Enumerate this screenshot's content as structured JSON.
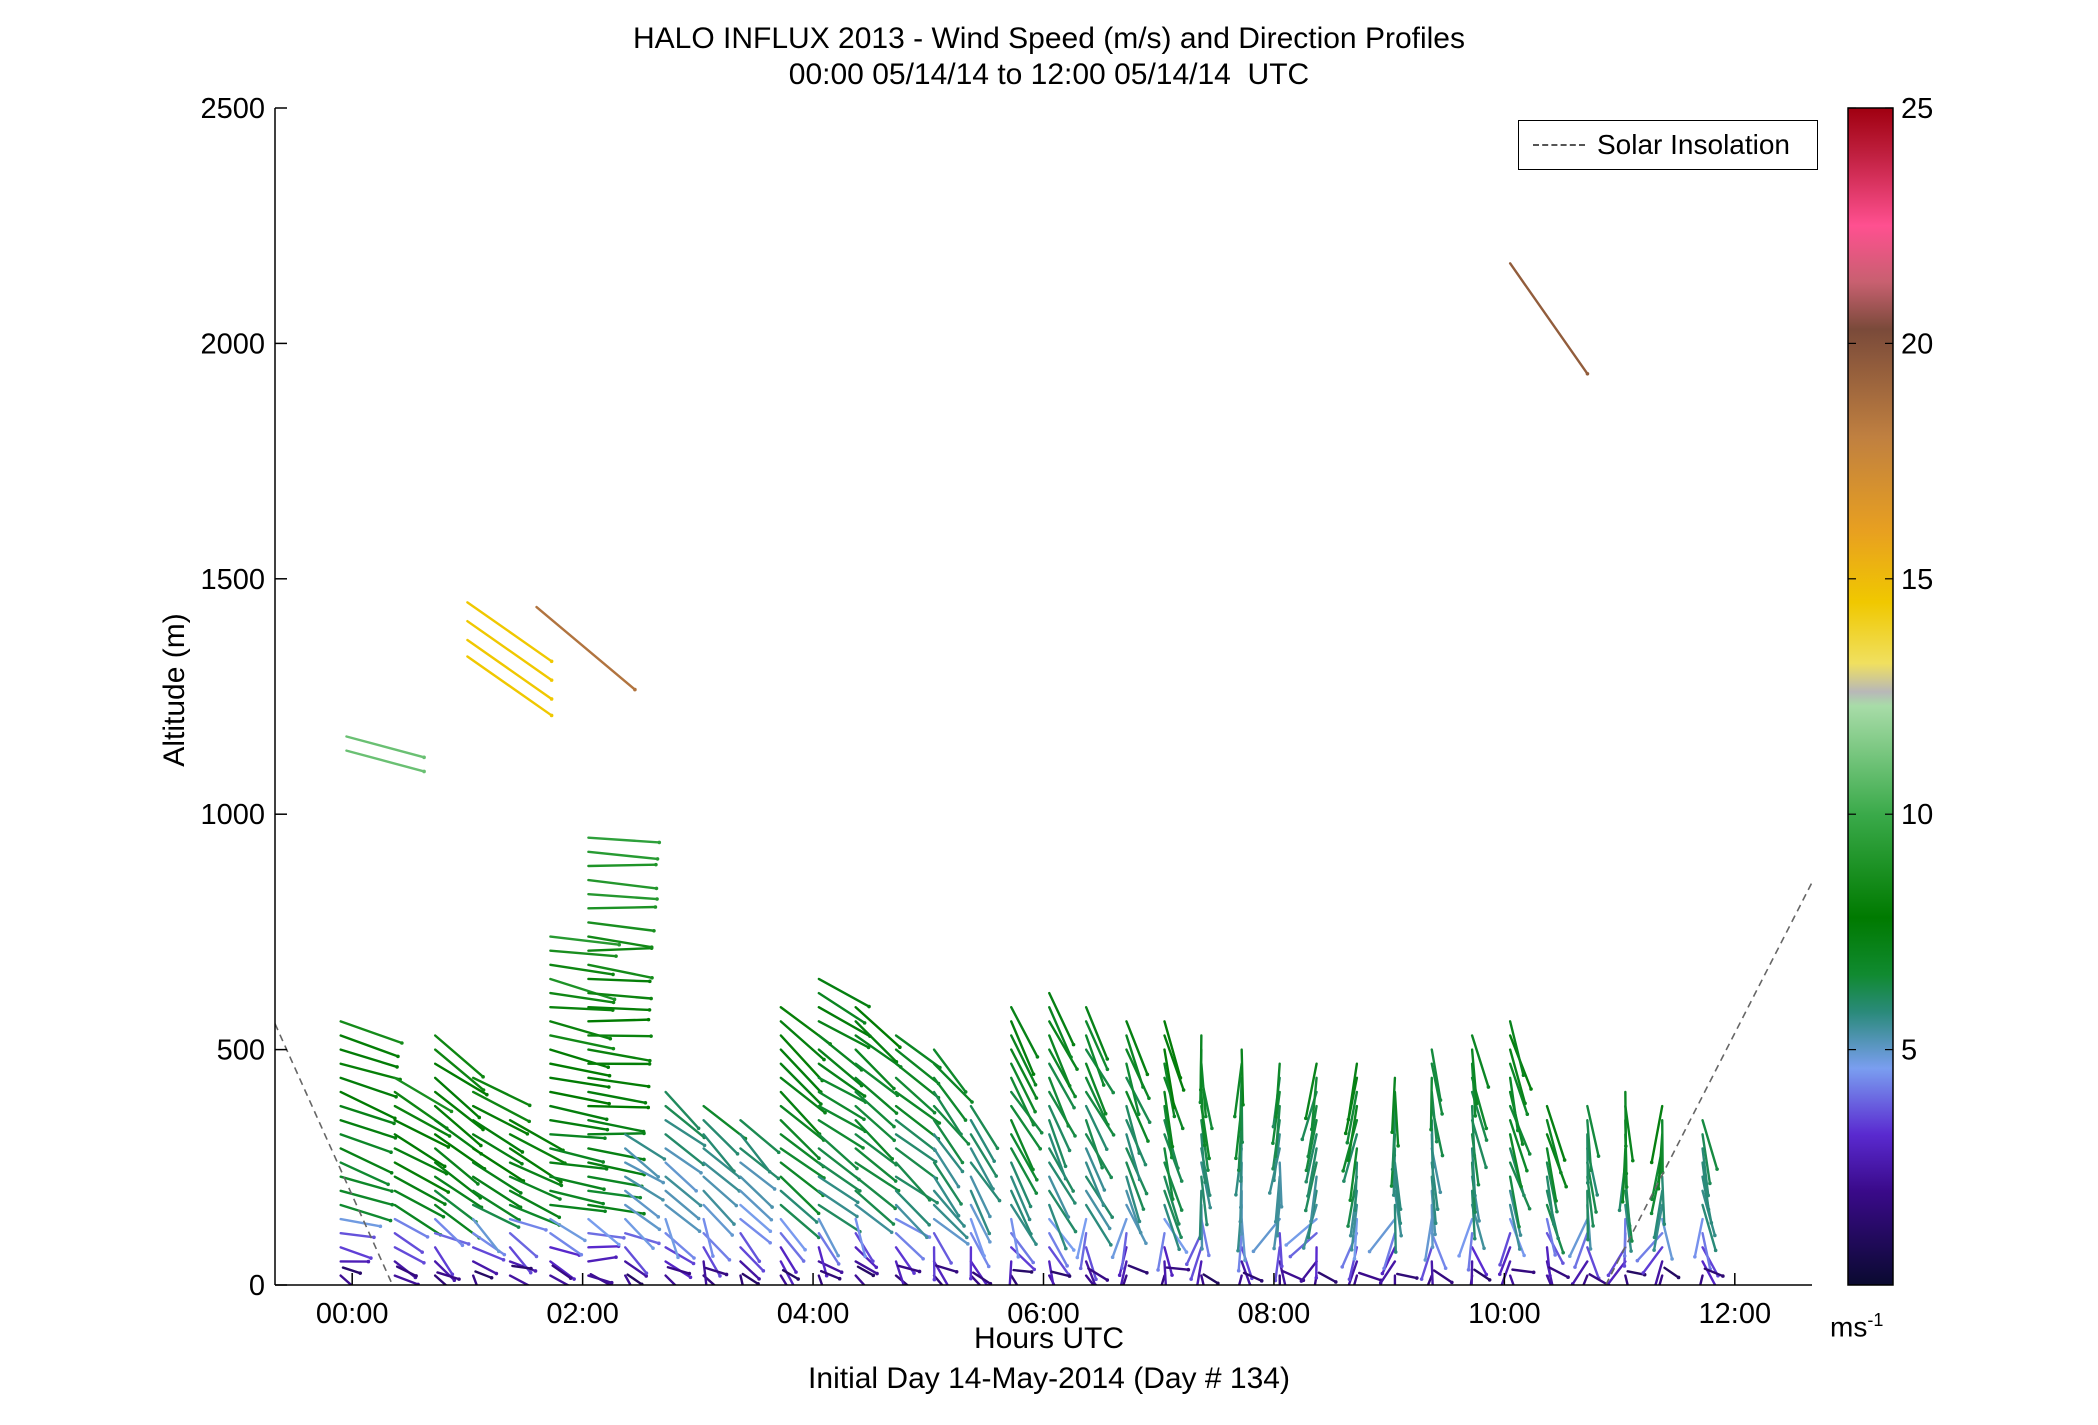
{
  "chart_data": {
    "type": "wind-barb-profile",
    "title": "HALO INFLUX 2013 - Wind Speed (m/s) and Direction Profiles",
    "subtitle": "00:00 05/14/14 to 12:00 05/14/14  UTC",
    "xlabel": "Hours UTC",
    "xlabel2": "Initial Day 14-May-2014 (Day # 134)",
    "ylabel": "Altitude (m)",
    "xlim": [
      -0.67,
      12.67
    ],
    "ylim": [
      0,
      2500
    ],
    "x_ticks": [
      0,
      2,
      4,
      6,
      8,
      10,
      12
    ],
    "x_tick_labels": [
      "00:00",
      "02:00",
      "04:00",
      "06:00",
      "08:00",
      "10:00",
      "12:00"
    ],
    "y_ticks": [
      0,
      500,
      1000,
      1500,
      2000,
      2500
    ],
    "y_tick_labels": [
      "0",
      "500",
      "1000",
      "1500",
      "2000",
      "2500"
    ],
    "legend": {
      "label": "Solar Insolation",
      "position": "top-right",
      "style": "dashed",
      "color": "#666666"
    },
    "colorbar": {
      "range": [
        0,
        25
      ],
      "ticks": [
        5,
        10,
        15,
        20,
        25
      ],
      "tick_labels": [
        "5",
        "10",
        "15",
        "20",
        "25"
      ],
      "units": "ms",
      "units_exp": "-1",
      "stops": [
        {
          "v": 0,
          "c": "#0a0a30"
        },
        {
          "v": 2,
          "c": "#3a0a8a"
        },
        {
          "v": 3.2,
          "c": "#5a2ad0"
        },
        {
          "v": 4.6,
          "c": "#7a9ef0"
        },
        {
          "v": 5.8,
          "c": "#2a8a7a"
        },
        {
          "v": 6.6,
          "c": "#108a30"
        },
        {
          "v": 7.8,
          "c": "#007a00"
        },
        {
          "v": 10,
          "c": "#3aaa4a"
        },
        {
          "v": 12.3,
          "c": "#a8dca8"
        },
        {
          "v": 12.6,
          "c": "#b8b8b8"
        },
        {
          "v": 13.2,
          "c": "#f0e060"
        },
        {
          "v": 14.5,
          "c": "#f0c800"
        },
        {
          "v": 16,
          "c": "#e8a020"
        },
        {
          "v": 18,
          "c": "#c08040"
        },
        {
          "v": 20.3,
          "c": "#7a4a3a"
        },
        {
          "v": 21.3,
          "c": "#c86070"
        },
        {
          "v": 22.5,
          "c": "#ff5090"
        },
        {
          "v": 24,
          "c": "#c02040"
        },
        {
          "v": 25,
          "c": "#a00010"
        }
      ]
    },
    "solar_insolation": [
      {
        "x": [
          -0.67,
          0.35
        ],
        "y": [
          555,
          0
        ]
      },
      {
        "x": [
          10.88,
          12.67
        ],
        "y": [
          0,
          855
        ]
      }
    ],
    "profile_times": [
      -0.1,
      0.37,
      0.72,
      1.05,
      1.37,
      1.72,
      2.05,
      2.37,
      2.72,
      3.05,
      3.37,
      3.72,
      4.05,
      4.37,
      4.72,
      5.05,
      5.37,
      5.72,
      6.05,
      6.37,
      6.72,
      7.05,
      7.37,
      7.72,
      8.05,
      8.37,
      8.72,
      9.05,
      9.37,
      9.72,
      10.05,
      10.37,
      10.72,
      11.05,
      11.37,
      11.72
    ],
    "profile_tops": [
      570,
      450,
      550,
      440,
      360,
      760,
      960,
      330,
      420,
      380,
      360,
      600,
      650,
      590,
      540,
      500,
      400,
      600,
      620,
      600,
      580,
      560,
      530,
      500,
      470,
      480,
      480,
      460,
      520,
      540,
      580,
      400,
      400,
      410,
      380,
      370
    ],
    "profile_dir_deg": [
      110,
      120,
      125,
      120,
      120,
      100,
      95,
      125,
      130,
      135,
      135,
      130,
      125,
      130,
      130,
      140,
      150,
      150,
      155,
      155,
      160,
      165,
      175,
      180,
      185,
      190,
      190,
      180,
      175,
      170,
      165,
      165,
      175,
      180,
      185,
      170
    ],
    "profile_speed": [
      7.5,
      8.0,
      7.8,
      7.6,
      7.5,
      8.2,
      8.5,
      5.2,
      5.5,
      5.8,
      5.5,
      7.2,
      6.8,
      6.8,
      6.5,
      6.2,
      5.8,
      6.8,
      6.6,
      6.4,
      6.5,
      6.8,
      6.5,
      6.2,
      6.0,
      6.2,
      6.5,
      6.2,
      6.0,
      6.4,
      6.8,
      6.6,
      6.2,
      6.5,
      6.4,
      6.0
    ],
    "isolated_barbs": [
      {
        "t": -0.05,
        "alt": 1165,
        "speed": 11.0,
        "dir_deg": 105
      },
      {
        "t": -0.05,
        "alt": 1135,
        "speed": 11.0,
        "dir_deg": 105
      },
      {
        "t": 1.0,
        "alt": 1450,
        "speed": 14.5,
        "dir_deg": 125
      },
      {
        "t": 1.0,
        "alt": 1410,
        "speed": 14.5,
        "dir_deg": 125
      },
      {
        "t": 1.0,
        "alt": 1370,
        "speed": 14.5,
        "dir_deg": 125
      },
      {
        "t": 1.0,
        "alt": 1335,
        "speed": 14.5,
        "dir_deg": 125
      },
      {
        "t": 1.6,
        "alt": 1440,
        "speed": 18.5,
        "dir_deg": 130
      },
      {
        "t": 10.05,
        "alt": 2170,
        "speed": 19.5,
        "dir_deg": 145
      }
    ]
  }
}
